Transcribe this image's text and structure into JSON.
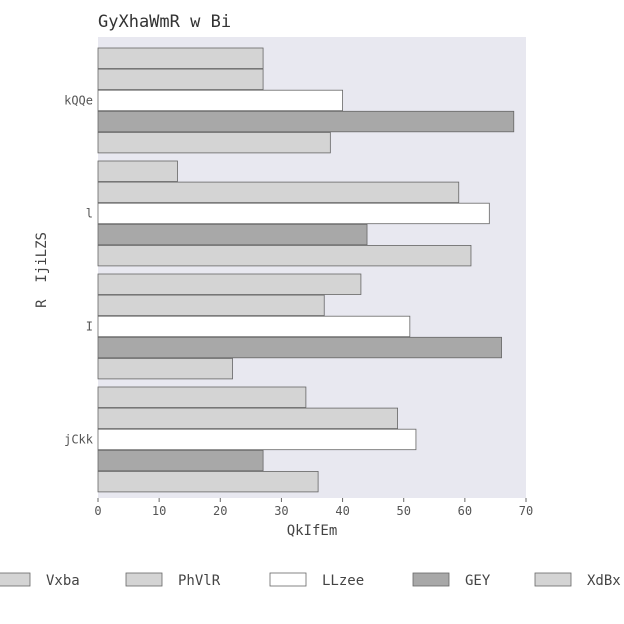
{
  "chart_data": {
    "type": "bar",
    "orientation": "horizontal",
    "title": "GyXhaWmR w Bi",
    "xlabel": "QkIfEm",
    "ylabel": "R  IjiLZS",
    "xlim": [
      0,
      70
    ],
    "xticks": [
      "0",
      "10",
      "20",
      "30",
      "40",
      "50",
      "60",
      "70"
    ],
    "categories": [
      "kQQe",
      "l",
      "I",
      "jCkk"
    ],
    "series": [
      {
        "name": "Vxba",
        "color": "#d4d4d4",
        "values": [
          27,
          13,
          43,
          34
        ]
      },
      {
        "name": "PhVlR",
        "color": "#d4d4d4",
        "values": [
          27,
          59,
          37,
          49
        ]
      },
      {
        "name": "LLzee",
        "color": "#ffffff",
        "values": [
          40,
          64,
          51,
          52
        ]
      },
      {
        "name": "GEY",
        "color": "#a8a8a8",
        "values": [
          68,
          44,
          66,
          27
        ]
      },
      {
        "name": "XdBx",
        "color": "#d4d4d4",
        "values": [
          38,
          61,
          22,
          36
        ]
      }
    ],
    "background": "#e8e8f0"
  }
}
